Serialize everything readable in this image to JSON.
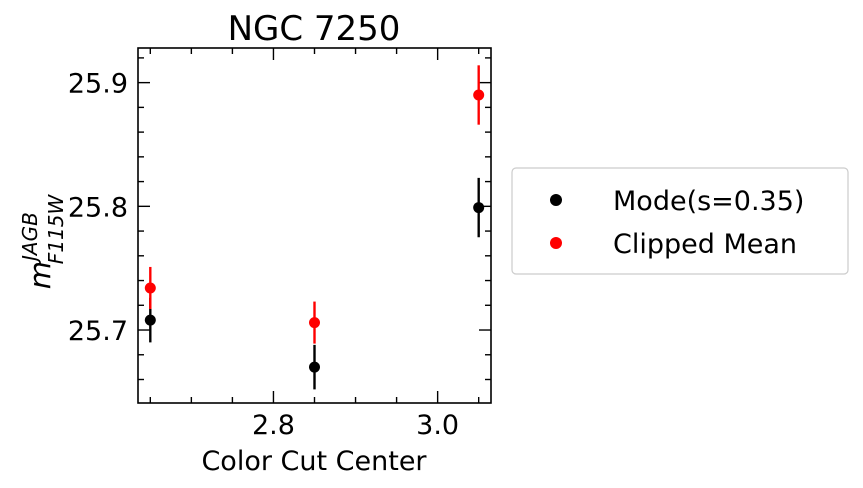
{
  "chart_data": {
    "type": "scatter",
    "title": "NGC 7250",
    "xlabel": "Color Cut Center",
    "ylabel": {
      "base": "m",
      "superscript": "JAGB",
      "subscript": "F115W"
    },
    "xlim": [
      2.635,
      3.065
    ],
    "ylim": [
      25.641,
      25.928
    ],
    "xticks": [
      2.8,
      3.0
    ],
    "xtick_labels": [
      "2.8",
      "3.0"
    ],
    "yticks": [
      25.7,
      25.8,
      25.9
    ],
    "ytick_labels": [
      "25.7",
      "25.8",
      "25.9"
    ],
    "grid": false,
    "legend_position": "outside-right",
    "series": [
      {
        "name": "Mode(s=0.35)",
        "color": "#000000",
        "points": [
          {
            "x": 2.65,
            "y": 25.708,
            "err": 0.018
          },
          {
            "x": 2.85,
            "y": 25.67,
            "err": 0.018
          },
          {
            "x": 3.05,
            "y": 25.799,
            "err": 0.024
          }
        ]
      },
      {
        "name": "Clipped Mean",
        "color": "#ff0000",
        "points": [
          {
            "x": 2.65,
            "y": 25.734,
            "err": 0.017
          },
          {
            "x": 2.85,
            "y": 25.706,
            "err": 0.017
          },
          {
            "x": 3.05,
            "y": 25.89,
            "err": 0.024
          }
        ]
      }
    ]
  }
}
